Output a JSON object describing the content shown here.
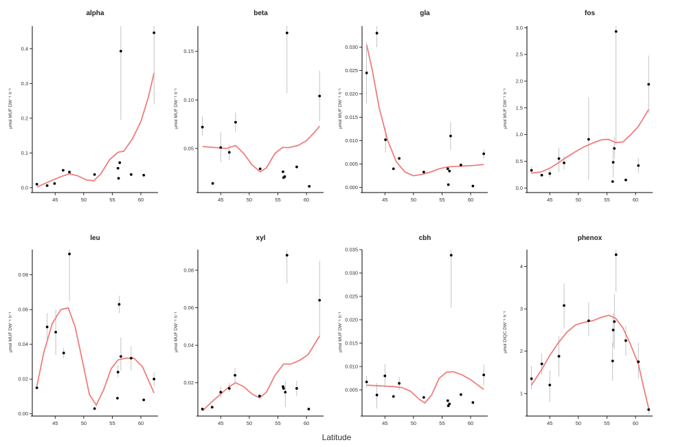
{
  "figure": {
    "xlabel": "Latitude"
  },
  "chart_data": [
    {
      "type": "scatter",
      "title": "alpha",
      "ylabel": "µmol MUF DW⁻¹ h⁻¹",
      "xlim": [
        41,
        63
      ],
      "ylim": [
        -0.01,
        0.465
      ],
      "xticks": [
        45,
        50,
        55,
        60
      ],
      "yticks": [
        0.0,
        0.1,
        0.2,
        0.3,
        0.4
      ],
      "tick_decimals": 1,
      "points": [
        {
          "x": 41.8,
          "y": 0.01
        },
        {
          "x": 43.6,
          "y": 0.006
        },
        {
          "x": 44.9,
          "y": 0.012
        },
        {
          "x": 46.4,
          "y": 0.05
        },
        {
          "x": 47.5,
          "y": 0.045
        },
        {
          "x": 51.9,
          "y": 0.038
        },
        {
          "x": 56.0,
          "y": 0.056
        },
        {
          "x": 56.1,
          "y": 0.027
        },
        {
          "x": 56.3,
          "y": 0.072
        },
        {
          "x": 56.5,
          "y": 0.393,
          "lo": 0.195,
          "hi": 0.465
        },
        {
          "x": 58.3,
          "y": 0.038
        },
        {
          "x": 60.5,
          "y": 0.036
        },
        {
          "x": 62.3,
          "y": 0.446,
          "lo": 0.24,
          "hi": 0.465
        }
      ],
      "smooth": [
        [
          41.8,
          0.002
        ],
        [
          44,
          0.018
        ],
        [
          46,
          0.032
        ],
        [
          47.5,
          0.04
        ],
        [
          49,
          0.034
        ],
        [
          50.5,
          0.022
        ],
        [
          51.8,
          0.02
        ],
        [
          53,
          0.04
        ],
        [
          54.5,
          0.08
        ],
        [
          56,
          0.102
        ],
        [
          57,
          0.105
        ],
        [
          58.5,
          0.14
        ],
        [
          60,
          0.19
        ],
        [
          61.3,
          0.26
        ],
        [
          62.3,
          0.33
        ]
      ]
    },
    {
      "type": "scatter",
      "title": "beta",
      "ylabel": "µmol MUF DW⁻¹ h⁻¹",
      "xlim": [
        41,
        63
      ],
      "ylim": [
        0.006,
        0.176
      ],
      "xticks": [
        45,
        50,
        55,
        60
      ],
      "yticks": [
        0.05,
        0.1,
        0.15
      ],
      "tick_decimals": 2,
      "points": [
        {
          "x": 41.8,
          "y": 0.072,
          "lo": 0.063,
          "hi": 0.083
        },
        {
          "x": 43.6,
          "y": 0.014
        },
        {
          "x": 45.0,
          "y": 0.051,
          "lo": 0.036,
          "hi": 0.067
        },
        {
          "x": 46.5,
          "y": 0.046,
          "lo": 0.038,
          "hi": 0.054
        },
        {
          "x": 47.6,
          "y": 0.077,
          "lo": 0.067,
          "hi": 0.087
        },
        {
          "x": 51.9,
          "y": 0.029
        },
        {
          "x": 55.9,
          "y": 0.026
        },
        {
          "x": 56.0,
          "y": 0.02
        },
        {
          "x": 56.2,
          "y": 0.021
        },
        {
          "x": 56.6,
          "y": 0.169,
          "lo": 0.107,
          "hi": 0.176
        },
        {
          "x": 58.3,
          "y": 0.031
        },
        {
          "x": 60.5,
          "y": 0.011
        },
        {
          "x": 62.3,
          "y": 0.104,
          "lo": 0.078,
          "hi": 0.13
        }
      ],
      "smooth": [
        [
          41.8,
          0.052
        ],
        [
          44,
          0.051
        ],
        [
          46,
          0.05
        ],
        [
          47.6,
          0.053
        ],
        [
          49,
          0.045
        ],
        [
          50.5,
          0.033
        ],
        [
          51.9,
          0.026
        ],
        [
          53,
          0.03
        ],
        [
          54.5,
          0.045
        ],
        [
          55.8,
          0.051
        ],
        [
          57,
          0.051
        ],
        [
          58.5,
          0.053
        ],
        [
          60,
          0.058
        ],
        [
          61.3,
          0.066
        ],
        [
          62.3,
          0.073
        ]
      ]
    },
    {
      "type": "scatter",
      "title": "gla",
      "ylabel": "µmol MUF DW⁻¹ h⁻¹",
      "xlim": [
        41,
        63
      ],
      "ylim": [
        -0.0008,
        0.0345
      ],
      "xticks": [
        45,
        50,
        55,
        60
      ],
      "yticks": [
        0.0,
        0.005,
        0.01,
        0.015,
        0.02,
        0.025,
        0.03
      ],
      "tick_decimals": 3,
      "points": [
        {
          "x": 41.8,
          "y": 0.0245,
          "lo": 0.018,
          "hi": 0.031
        },
        {
          "x": 43.6,
          "y": 0.033,
          "lo": 0.03,
          "hi": 0.0345
        },
        {
          "x": 45.1,
          "y": 0.0102,
          "lo": 0.0075,
          "hi": 0.0128
        },
        {
          "x": 46.5,
          "y": 0.004
        },
        {
          "x": 47.5,
          "y": 0.0062
        },
        {
          "x": 51.8,
          "y": 0.0033
        },
        {
          "x": 56.0,
          "y": 0.004
        },
        {
          "x": 56.1,
          "y": 0.0006
        },
        {
          "x": 56.3,
          "y": 0.0035
        },
        {
          "x": 56.5,
          "y": 0.011,
          "lo": 0.008,
          "hi": 0.014
        },
        {
          "x": 58.3,
          "y": 0.0048
        },
        {
          "x": 60.4,
          "y": 0.0003
        },
        {
          "x": 62.3,
          "y": 0.0072,
          "lo": 0.0062,
          "hi": 0.0082
        }
      ],
      "smooth": [
        [
          41.8,
          0.0305
        ],
        [
          42.8,
          0.025
        ],
        [
          44,
          0.017
        ],
        [
          45.5,
          0.01
        ],
        [
          47,
          0.0055
        ],
        [
          48.5,
          0.0033
        ],
        [
          50,
          0.0025
        ],
        [
          51.5,
          0.0028
        ],
        [
          53,
          0.0033
        ],
        [
          54.5,
          0.004
        ],
        [
          56,
          0.0044
        ],
        [
          57.5,
          0.0045
        ],
        [
          59,
          0.0046
        ],
        [
          60.5,
          0.0047
        ],
        [
          62.3,
          0.0049
        ]
      ]
    },
    {
      "type": "scatter",
      "title": "fos",
      "ylabel": "µmol MUF DW⁻¹ h⁻¹",
      "xlim": [
        41,
        63
      ],
      "ylim": [
        -0.06,
        3.03
      ],
      "xticks": [
        45,
        50,
        55,
        60
      ],
      "yticks": [
        0.0,
        0.5,
        1.0,
        1.5,
        2.0,
        2.5,
        3.0
      ],
      "tick_decimals": 1,
      "points": [
        {
          "x": 41.8,
          "y": 0.33,
          "lo": 0.26,
          "hi": 0.4
        },
        {
          "x": 43.6,
          "y": 0.24
        },
        {
          "x": 45.0,
          "y": 0.27,
          "lo": 0.2,
          "hi": 0.34
        },
        {
          "x": 46.6,
          "y": 0.55,
          "lo": 0.3,
          "hi": 0.75
        },
        {
          "x": 47.5,
          "y": 0.47,
          "lo": 0.35,
          "hi": 0.6
        },
        {
          "x": 51.8,
          "y": 0.91,
          "lo": 0.15,
          "hi": 1.7
        },
        {
          "x": 56.0,
          "y": 0.12
        },
        {
          "x": 56.1,
          "y": 0.48,
          "lo": 0.2,
          "hi": 0.8
        },
        {
          "x": 56.3,
          "y": 0.74,
          "lo": 0.55,
          "hi": 0.95
        },
        {
          "x": 56.6,
          "y": 2.93,
          "lo": 0.8,
          "hi": 3.03
        },
        {
          "x": 58.3,
          "y": 0.15
        },
        {
          "x": 60.5,
          "y": 0.42,
          "lo": 0.28,
          "hi": 0.56
        },
        {
          "x": 62.3,
          "y": 1.94,
          "lo": 1.4,
          "hi": 2.48
        }
      ],
      "smooth": [
        [
          41.8,
          0.28
        ],
        [
          43.5,
          0.3
        ],
        [
          45,
          0.37
        ],
        [
          46.5,
          0.47
        ],
        [
          48,
          0.58
        ],
        [
          49.5,
          0.68
        ],
        [
          51,
          0.77
        ],
        [
          52.5,
          0.84
        ],
        [
          54,
          0.9
        ],
        [
          55.3,
          0.91
        ],
        [
          56.5,
          0.85
        ],
        [
          57.8,
          0.86
        ],
        [
          59,
          0.98
        ],
        [
          60.5,
          1.15
        ],
        [
          62.3,
          1.47
        ]
      ]
    },
    {
      "type": "scatter",
      "title": "leu",
      "ylabel": "µmol MUF DW⁻¹ h⁻¹",
      "xlim": [
        41,
        63
      ],
      "ylim": [
        -0.0005,
        0.0945
      ],
      "xticks": [
        45,
        50,
        55,
        60
      ],
      "yticks": [
        0.0,
        0.02,
        0.04,
        0.06,
        0.08
      ],
      "tick_decimals": 2,
      "points": [
        {
          "x": 41.8,
          "y": 0.015
        },
        {
          "x": 43.6,
          "y": 0.05,
          "lo": 0.043,
          "hi": 0.058
        },
        {
          "x": 45.1,
          "y": 0.047,
          "lo": 0.034,
          "hi": 0.06
        },
        {
          "x": 46.5,
          "y": 0.035,
          "lo": 0.032,
          "hi": 0.038
        },
        {
          "x": 47.5,
          "y": 0.092,
          "lo": 0.065,
          "hi": 0.0945
        },
        {
          "x": 51.9,
          "y": 0.003
        },
        {
          "x": 55.9,
          "y": 0.009
        },
        {
          "x": 56.0,
          "y": 0.024,
          "lo": 0.021,
          "hi": 0.028
        },
        {
          "x": 56.2,
          "y": 0.063,
          "lo": 0.058,
          "hi": 0.068
        },
        {
          "x": 56.5,
          "y": 0.033,
          "lo": 0.025,
          "hi": 0.044
        },
        {
          "x": 58.3,
          "y": 0.032,
          "lo": 0.025,
          "hi": 0.039
        },
        {
          "x": 60.5,
          "y": 0.008
        },
        {
          "x": 62.3,
          "y": 0.02,
          "lo": 0.016,
          "hi": 0.024
        }
      ],
      "smooth": [
        [
          41.8,
          0.016
        ],
        [
          43,
          0.035
        ],
        [
          44.5,
          0.052
        ],
        [
          46,
          0.06
        ],
        [
          47.3,
          0.061
        ],
        [
          48.5,
          0.05
        ],
        [
          49.8,
          0.03
        ],
        [
          51,
          0.011
        ],
        [
          52.2,
          0.005
        ],
        [
          53.5,
          0.014
        ],
        [
          54.8,
          0.026
        ],
        [
          56,
          0.031
        ],
        [
          57.3,
          0.032
        ],
        [
          58.8,
          0.032
        ],
        [
          60.3,
          0.027
        ],
        [
          62.3,
          0.012
        ]
      ]
    },
    {
      "type": "scatter",
      "title": "xyl",
      "ylabel": "µmol MUF DW⁻¹ h⁻¹",
      "xlim": [
        41,
        63
      ],
      "ylim": [
        0.003,
        0.091
      ],
      "xticks": [
        45,
        50,
        55,
        60
      ],
      "yticks": [
        0.02,
        0.04,
        0.06,
        0.08
      ],
      "tick_decimals": 2,
      "points": [
        {
          "x": 41.8,
          "y": 0.006
        },
        {
          "x": 43.5,
          "y": 0.007
        },
        {
          "x": 45.0,
          "y": 0.015,
          "lo": 0.012,
          "hi": 0.018
        },
        {
          "x": 46.5,
          "y": 0.017,
          "lo": 0.015,
          "hi": 0.02
        },
        {
          "x": 47.5,
          "y": 0.024,
          "lo": 0.02,
          "hi": 0.028
        },
        {
          "x": 51.8,
          "y": 0.013
        },
        {
          "x": 55.9,
          "y": 0.018
        },
        {
          "x": 56.0,
          "y": 0.017
        },
        {
          "x": 56.3,
          "y": 0.015,
          "lo": 0.007,
          "hi": 0.021
        },
        {
          "x": 56.6,
          "y": 0.088,
          "lo": 0.073,
          "hi": 0.091
        },
        {
          "x": 58.3,
          "y": 0.017,
          "lo": 0.013,
          "hi": 0.021
        },
        {
          "x": 60.4,
          "y": 0.006
        },
        {
          "x": 62.3,
          "y": 0.064,
          "lo": 0.044,
          "hi": 0.085
        }
      ],
      "smooth": [
        [
          41.8,
          0.005
        ],
        [
          43.5,
          0.01
        ],
        [
          45,
          0.014
        ],
        [
          46.5,
          0.018
        ],
        [
          47.6,
          0.02
        ],
        [
          49,
          0.018
        ],
        [
          50.5,
          0.014
        ],
        [
          51.8,
          0.012
        ],
        [
          53,
          0.015
        ],
        [
          54.5,
          0.024
        ],
        [
          56,
          0.03
        ],
        [
          57.3,
          0.03
        ],
        [
          58.8,
          0.032
        ],
        [
          60.3,
          0.035
        ],
        [
          62.3,
          0.045
        ]
      ]
    },
    {
      "type": "scatter",
      "title": "cbh",
      "ylabel": "µmol MUF DW⁻¹ h⁻¹",
      "xlim": [
        41,
        63
      ],
      "ylim": [
        -0.0003,
        0.035
      ],
      "xticks": [
        45,
        50,
        55,
        60
      ],
      "yticks": [
        0.005,
        0.01,
        0.015,
        0.02,
        0.025,
        0.03,
        0.035
      ],
      "tick_decimals": 3,
      "points": [
        {
          "x": 41.8,
          "y": 0.0067,
          "lo": 0.0055,
          "hi": 0.008
        },
        {
          "x": 43.6,
          "y": 0.0039,
          "lo": 0.001,
          "hi": 0.0065
        },
        {
          "x": 45.0,
          "y": 0.008,
          "lo": 0.0055,
          "hi": 0.0105
        },
        {
          "x": 46.5,
          "y": 0.0036
        },
        {
          "x": 47.5,
          "y": 0.0064,
          "lo": 0.005,
          "hi": 0.0078
        },
        {
          "x": 51.8,
          "y": 0.0034
        },
        {
          "x": 56.0,
          "y": 0.0027
        },
        {
          "x": 56.1,
          "y": 0.0016
        },
        {
          "x": 56.3,
          "y": 0.002
        },
        {
          "x": 56.6,
          "y": 0.0338,
          "lo": 0.0225,
          "hi": 0.035
        },
        {
          "x": 58.3,
          "y": 0.004
        },
        {
          "x": 60.4,
          "y": 0.0023
        },
        {
          "x": 62.3,
          "y": 0.0082,
          "lo": 0.006,
          "hi": 0.0104
        }
      ],
      "smooth": [
        [
          41.8,
          0.006
        ],
        [
          43.5,
          0.0059
        ],
        [
          45,
          0.0058
        ],
        [
          46.5,
          0.0057
        ],
        [
          48,
          0.0055
        ],
        [
          49.5,
          0.0047
        ],
        [
          51,
          0.003
        ],
        [
          52,
          0.0022
        ],
        [
          53.2,
          0.004
        ],
        [
          54.5,
          0.0075
        ],
        [
          55.8,
          0.0088
        ],
        [
          57,
          0.0089
        ],
        [
          58.5,
          0.0082
        ],
        [
          60,
          0.0072
        ],
        [
          61.3,
          0.006
        ],
        [
          62.3,
          0.0051
        ]
      ]
    },
    {
      "type": "scatter",
      "title": "phenox",
      "ylabel": "µmol DIQC DW⁻¹ h⁻¹",
      "xlim": [
        41,
        63
      ],
      "ylim": [
        0.5,
        4.4
      ],
      "xticks": [
        45,
        50,
        55,
        60
      ],
      "yticks": [
        1,
        2,
        3,
        4
      ],
      "tick_decimals": 0,
      "points": [
        {
          "x": 41.8,
          "y": 1.35,
          "lo": 1.1,
          "hi": 1.65
        },
        {
          "x": 43.6,
          "y": 1.7,
          "lo": 1.45,
          "hi": 1.95
        },
        {
          "x": 45.0,
          "y": 1.2,
          "lo": 0.8,
          "hi": 1.55
        },
        {
          "x": 46.6,
          "y": 1.88,
          "lo": 1.4,
          "hi": 2.35
        },
        {
          "x": 47.5,
          "y": 3.08,
          "lo": 2.55,
          "hi": 3.6
        },
        {
          "x": 51.8,
          "y": 2.72,
          "lo": 2.35,
          "hi": 3.15
        },
        {
          "x": 56.0,
          "y": 1.77,
          "lo": 1.3,
          "hi": 2.2
        },
        {
          "x": 56.1,
          "y": 2.5,
          "lo": 2.1,
          "hi": 2.9
        },
        {
          "x": 56.3,
          "y": 2.7,
          "lo": 2.05,
          "hi": 3.35
        },
        {
          "x": 56.6,
          "y": 4.28,
          "lo": 3.4,
          "hi": 4.4
        },
        {
          "x": 58.3,
          "y": 2.25,
          "lo": 1.9,
          "hi": 2.6
        },
        {
          "x": 60.5,
          "y": 1.75,
          "lo": 1.35,
          "hi": 2.2
        },
        {
          "x": 62.3,
          "y": 0.62,
          "lo": 0.52,
          "hi": 0.72
        }
      ],
      "smooth": [
        [
          41.8,
          1.2
        ],
        [
          43.5,
          1.55
        ],
        [
          45,
          1.9
        ],
        [
          46.5,
          2.2
        ],
        [
          48,
          2.45
        ],
        [
          49.5,
          2.62
        ],
        [
          51,
          2.68
        ],
        [
          52.5,
          2.72
        ],
        [
          54,
          2.8
        ],
        [
          55.3,
          2.85
        ],
        [
          56.5,
          2.78
        ],
        [
          57.8,
          2.55
        ],
        [
          59,
          2.2
        ],
        [
          60.5,
          1.7
        ],
        [
          61.5,
          1.1
        ],
        [
          62.3,
          0.65
        ]
      ]
    }
  ]
}
